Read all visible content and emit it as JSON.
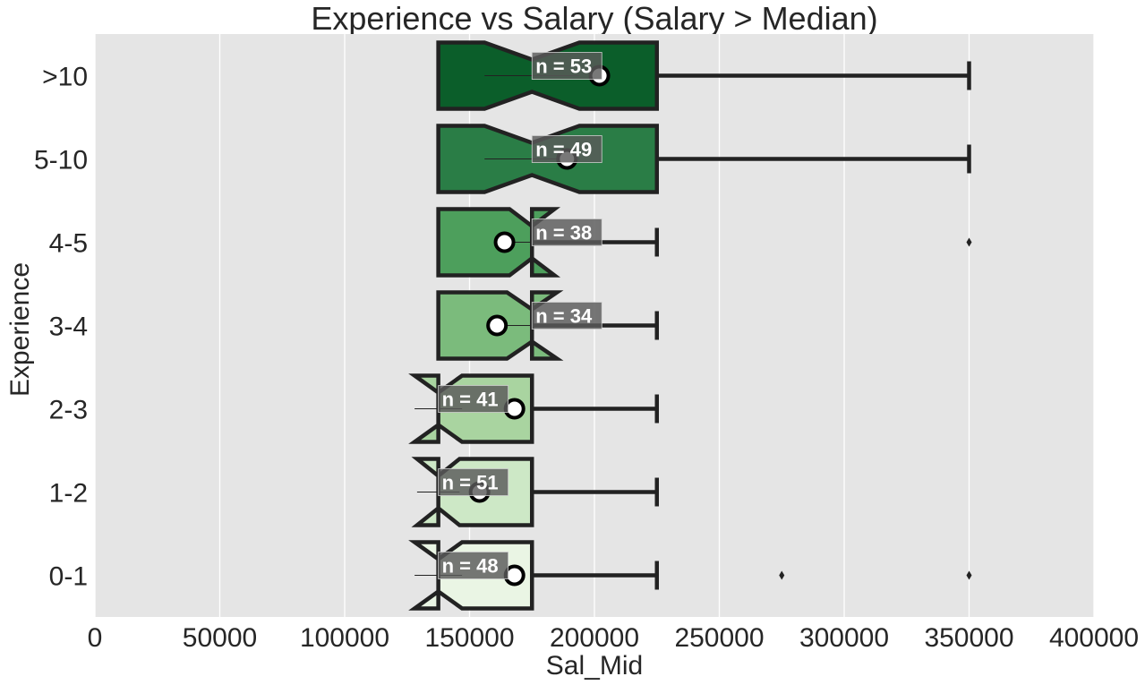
{
  "chart_data": {
    "type": "boxplot",
    "orientation": "horizontal",
    "notched": true,
    "title": "Experience vs Salary (Salary > Median)",
    "xlabel": "Sal_Mid",
    "ylabel": "Experience",
    "xlim": [
      0,
      400000
    ],
    "xticks": [
      0,
      50000,
      100000,
      150000,
      200000,
      250000,
      300000,
      350000,
      400000
    ],
    "xtick_labels": [
      "0",
      "50000",
      "100000",
      "150000",
      "200000",
      "250000",
      "300000",
      "350000",
      "400000"
    ],
    "grid": true,
    "categories": [
      ">10",
      "5-10",
      "4-5",
      "3-4",
      "2-3",
      "1-2",
      "0-1"
    ],
    "boxes": [
      {
        "label": ">10",
        "n_label": "n = 53",
        "q1": 137500,
        "median": 175000,
        "q3": 225000,
        "notch_low": 156000,
        "notch_high": 194000,
        "whisker_low": 137500,
        "whisker_high": 350000,
        "mean": 202000,
        "outliers": [],
        "color": "#0b5e2a"
      },
      {
        "label": "5-10",
        "n_label": "n = 49",
        "q1": 137500,
        "median": 175000,
        "q3": 225000,
        "notch_low": 156000,
        "notch_high": 194000,
        "whisker_low": 137500,
        "whisker_high": 350000,
        "mean": 189000,
        "outliers": [],
        "color": "#2a7d46"
      },
      {
        "label": "4-5",
        "n_label": "n = 38",
        "q1": 137500,
        "median": 175000,
        "q3": 175000,
        "notch_low": 166000,
        "notch_high": 184000,
        "whisker_low": 137500,
        "whisker_high": 225000,
        "mean": 164000,
        "outliers": [
          350000
        ],
        "color": "#4d9f5c"
      },
      {
        "label": "3-4",
        "n_label": "n = 34",
        "q1": 137500,
        "median": 175000,
        "q3": 175000,
        "notch_low": 165000,
        "notch_high": 185000,
        "whisker_low": 137500,
        "whisker_high": 225000,
        "mean": 161000,
        "outliers": [],
        "color": "#7bbb7c"
      },
      {
        "label": "2-3",
        "n_label": "n = 41",
        "q1": 137500,
        "median": 137500,
        "q3": 175000,
        "notch_low": 128000,
        "notch_high": 147000,
        "whisker_low": 137500,
        "whisker_high": 225000,
        "mean": 168000,
        "outliers": [],
        "color": "#a9d4a0"
      },
      {
        "label": "1-2",
        "n_label": "n = 51",
        "q1": 137500,
        "median": 137500,
        "q3": 175000,
        "notch_low": 129000,
        "notch_high": 146000,
        "whisker_low": 137500,
        "whisker_high": 225000,
        "mean": 154000,
        "outliers": [],
        "color": "#cde8c6"
      },
      {
        "label": "0-1",
        "n_label": "n = 48",
        "q1": 137500,
        "median": 137500,
        "q3": 175000,
        "notch_low": 128000,
        "notch_high": 147000,
        "whisker_low": 137500,
        "whisker_high": 225000,
        "mean": 168000,
        "outliers": [
          275000,
          350000
        ],
        "color": "#eaf5e4"
      }
    ],
    "colors": {
      "plot_background": "#e5e5e5",
      "grid": "#ffffff",
      "edge": "#222222",
      "mean_fill": "#ffffff",
      "label_box": "#5a5a5a"
    }
  }
}
